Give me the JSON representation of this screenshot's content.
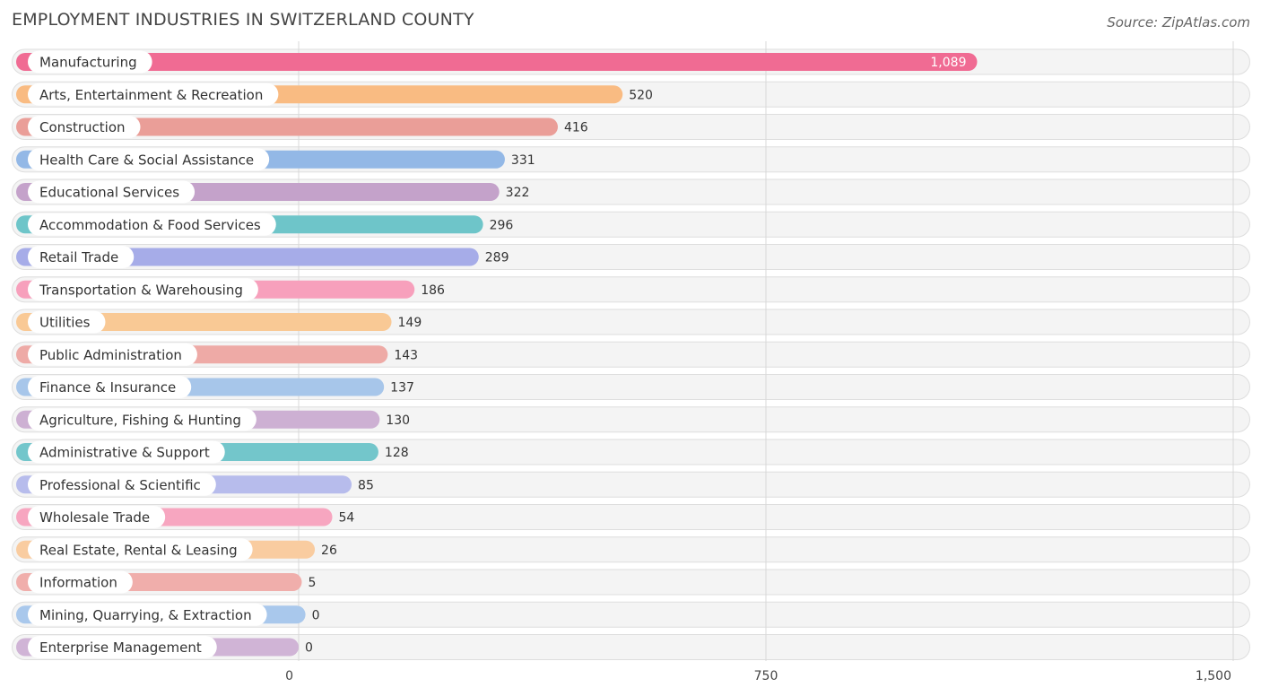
{
  "chart_data": {
    "type": "bar",
    "orientation": "horizontal",
    "title": "EMPLOYMENT INDUSTRIES IN SWITZERLAND COUNTY",
    "source": "Source: ZipAtlas.com",
    "xlim": [
      0,
      1500
    ],
    "ticks": [
      {
        "value": 0,
        "label": "0"
      },
      {
        "value": 750,
        "label": "750"
      },
      {
        "value": 1500,
        "label": "1,500"
      }
    ],
    "categories": [
      "Manufacturing",
      "Arts, Entertainment & Recreation",
      "Construction",
      "Health Care & Social Assistance",
      "Educational Services",
      "Accommodation & Food Services",
      "Retail Trade",
      "Transportation & Warehousing",
      "Utilities",
      "Public Administration",
      "Finance & Insurance",
      "Agriculture, Fishing & Hunting",
      "Administrative & Support",
      "Professional & Scientific",
      "Wholesale Trade",
      "Real Estate, Rental & Leasing",
      "Information",
      "Mining, Quarrying, & Extraction",
      "Enterprise Management"
    ],
    "values": [
      1089,
      520,
      416,
      331,
      322,
      296,
      289,
      186,
      149,
      143,
      137,
      130,
      128,
      85,
      54,
      26,
      5,
      0,
      0
    ],
    "value_labels": [
      "1,089",
      "520",
      "416",
      "331",
      "322",
      "296",
      "289",
      "186",
      "149",
      "143",
      "137",
      "130",
      "128",
      "85",
      "54",
      "26",
      "5",
      "0",
      "0"
    ],
    "colors": [
      "#f06b93",
      "#f9bb82",
      "#ea9e98",
      "#93b8e6",
      "#c4a2ca",
      "#6ec5c9",
      "#a6ace8",
      "#f7a0bc",
      "#f9c995",
      "#eeaaa6",
      "#a7c6ea",
      "#cdb0d3",
      "#73c6cb",
      "#b7bcec",
      "#f7a6c0",
      "#f9cca0",
      "#f0aeab",
      "#a9c8ec",
      "#d0b4d6"
    ]
  }
}
